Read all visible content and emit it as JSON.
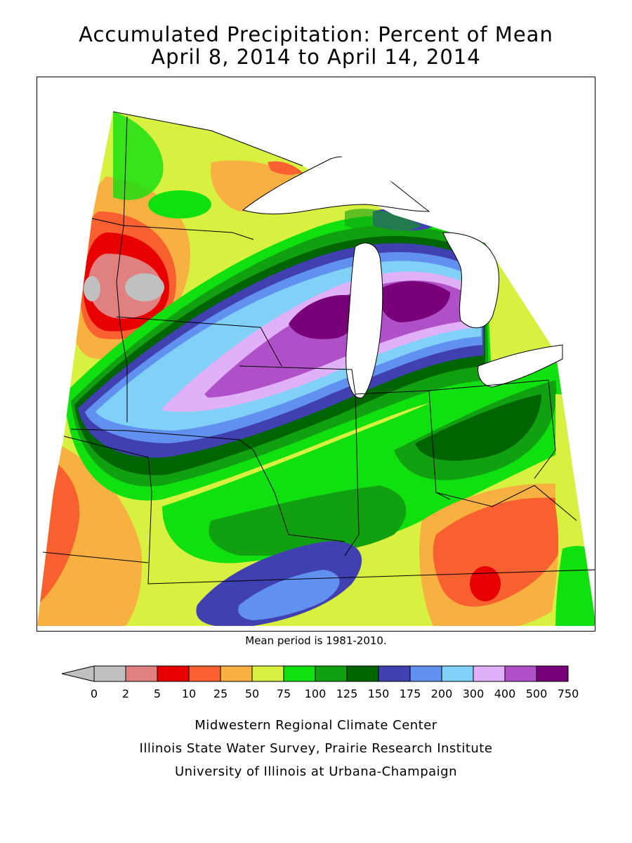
{
  "title": {
    "line1": "Accumulated Precipitation: Percent of Mean",
    "line2": "April 8, 2014 to April 14, 2014"
  },
  "mean_note": "Mean period is 1981-2010.",
  "legend": {
    "ticks": [
      "0",
      "2",
      "5",
      "10",
      "25",
      "50",
      "75",
      "100",
      "125",
      "150",
      "175",
      "200",
      "300",
      "400",
      "500",
      "750"
    ],
    "colors": [
      "#c0c0c0",
      "#e08080",
      "#e80000",
      "#f86030",
      "#f8b040",
      "#d8f040",
      "#10e010",
      "#10a010",
      "#006400",
      "#4040b0",
      "#6090f0",
      "#80d0f8",
      "#e0b0f8",
      "#b050c8",
      "#780078"
    ],
    "below_color": "#c0c0c0"
  },
  "map": {
    "region": "Midwest",
    "land_bg": "#80d830",
    "water": "#ffffff"
  },
  "credits": {
    "line1": "Midwestern Regional Climate Center",
    "line2": "Illinois State Water Survey, Prairie Research Institute",
    "line3": "University of Illinois at Urbana-Champaign"
  }
}
